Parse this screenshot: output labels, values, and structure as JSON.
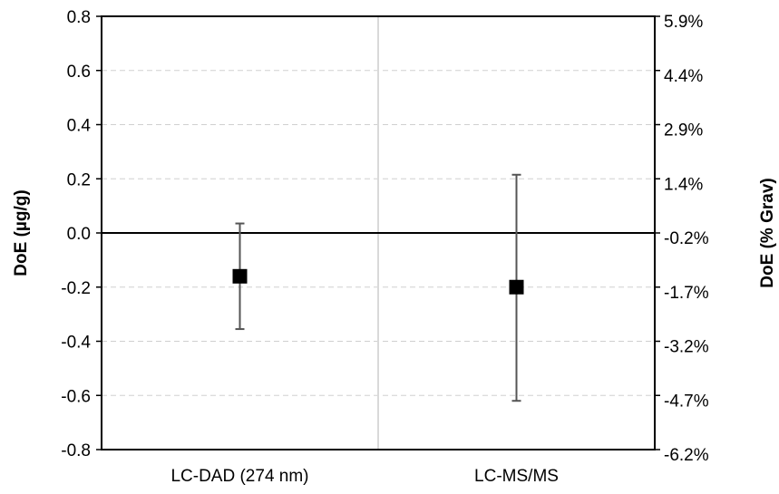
{
  "chart_data": {
    "type": "scatter",
    "title": "",
    "ylabel": "DoE (µg/g)",
    "y2label": "DoE (% Grav)",
    "ylim": [
      -0.8,
      0.8
    ],
    "yticks": [
      "0.8",
      "0.6",
      "0.4",
      "0.2",
      "0.0",
      "-0.2",
      "-0.4",
      "-0.6",
      "-0.8"
    ],
    "ytick_values": [
      0.8,
      0.6,
      0.4,
      0.2,
      0.0,
      -0.2,
      -0.4,
      -0.6,
      -0.8
    ],
    "y2ticks": [
      "5.9%",
      "4.4%",
      "2.9%",
      "1.4%",
      "-0.2%",
      "-1.7%",
      "-3.2%",
      "-4.7%",
      "-6.2%"
    ],
    "categories": [
      "LC-DAD (274 nm)",
      "LC-MS/MS"
    ],
    "values": [
      -0.16,
      -0.2
    ],
    "error_low": [
      -0.355,
      -0.62
    ],
    "error_high": [
      0.035,
      0.215
    ],
    "grid": "horizontal dashed",
    "zero_line": true,
    "colors": {
      "marker": "#000000",
      "errorbar": "#555555",
      "grid": "#d0d0d0",
      "divider": "#d9d9d9"
    }
  }
}
